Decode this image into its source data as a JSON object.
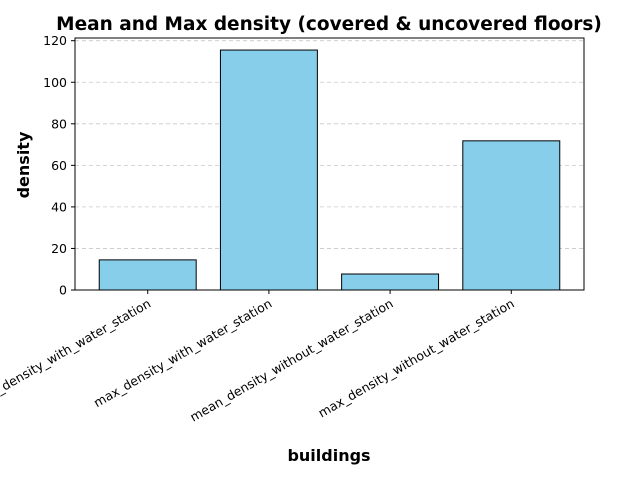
{
  "chart_data": {
    "type": "bar",
    "title": "Mean and Max density (covered & uncovered floors)",
    "xlabel": "buildings",
    "ylabel": "density",
    "categories": [
      "mean_density_with_water_station",
      "max_density_with_water_station",
      "mean_density_without_water_station",
      "max_density_without_water_station"
    ],
    "values": [
      14.5,
      115.5,
      7.7,
      71.8
    ],
    "ylim": [
      0,
      121.3
    ],
    "yticks": [
      0,
      20,
      40,
      60,
      80,
      100,
      120
    ],
    "grid": "horizontal dashed",
    "colors": {
      "bar_fill": "#87ceeb",
      "bar_edge": "#000000",
      "grid": "#c8c8c8"
    }
  }
}
